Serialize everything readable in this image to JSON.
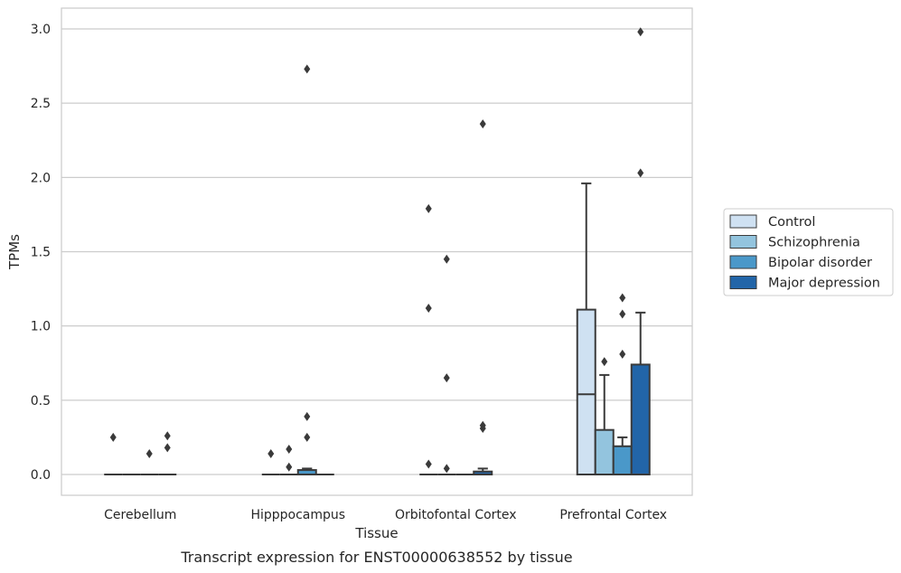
{
  "caption": "Transcript expression for ENST00000638552 by tissue",
  "chart_data": {
    "type": "box",
    "xlabel": "Tissue",
    "ylabel": "TPMs",
    "ylim": [
      -0.14,
      3.14
    ],
    "yticks": [
      0.0,
      0.5,
      1.0,
      1.5,
      2.0,
      2.5,
      3.0
    ],
    "ytick_labels": [
      "0.0",
      "0.5",
      "1.0",
      "1.5",
      "2.0",
      "2.5",
      "3.0"
    ],
    "grid": "horizontal",
    "legend_position": "right",
    "categories": [
      "Cerebellum",
      "Hipppocampus",
      "Orbitofontal Cortex",
      "Prefrontal Cortex"
    ],
    "series": [
      {
        "name": "Control",
        "color": "#cfe1f2",
        "boxes": [
          {
            "q1": 0.0,
            "median": 0.0,
            "q3": 0.0,
            "whisker_low": 0.0,
            "whisker_high": 0.0,
            "outliers": [
              0.25
            ]
          },
          {
            "q1": 0.0,
            "median": 0.0,
            "q3": 0.0,
            "whisker_low": 0.0,
            "whisker_high": 0.0,
            "outliers": [
              0.14
            ]
          },
          {
            "q1": 0.0,
            "median": 0.0,
            "q3": 0.0,
            "whisker_low": 0.0,
            "whisker_high": 0.0,
            "outliers": [
              1.79,
              1.12,
              0.07
            ]
          },
          {
            "q1": 0.0,
            "median": 0.54,
            "q3": 1.11,
            "whisker_low": 0.0,
            "whisker_high": 1.96,
            "outliers": []
          }
        ]
      },
      {
        "name": "Schizophrenia",
        "color": "#93c4de",
        "boxes": [
          {
            "q1": 0.0,
            "median": 0.0,
            "q3": 0.0,
            "whisker_low": 0.0,
            "whisker_high": 0.0,
            "outliers": []
          },
          {
            "q1": 0.0,
            "median": 0.0,
            "q3": 0.0,
            "whisker_low": 0.0,
            "whisker_high": 0.0,
            "outliers": [
              0.17,
              0.05
            ]
          },
          {
            "q1": 0.0,
            "median": 0.0,
            "q3": 0.0,
            "whisker_low": 0.0,
            "whisker_high": 0.0,
            "outliers": [
              1.45,
              0.65,
              0.04
            ]
          },
          {
            "q1": 0.0,
            "median": 0.0,
            "q3": 0.3,
            "whisker_low": 0.0,
            "whisker_high": 0.67,
            "outliers": [
              0.76
            ]
          }
        ]
      },
      {
        "name": "Bipolar disorder",
        "color": "#4a98c9",
        "boxes": [
          {
            "q1": 0.0,
            "median": 0.0,
            "q3": 0.0,
            "whisker_low": 0.0,
            "whisker_high": 0.0,
            "outliers": [
              0.14
            ]
          },
          {
            "q1": 0.0,
            "median": 0.0,
            "q3": 0.03,
            "whisker_low": 0.0,
            "whisker_high": 0.04,
            "outliers": [
              2.73,
              0.39,
              0.25
            ]
          },
          {
            "q1": 0.0,
            "median": 0.0,
            "q3": 0.0,
            "whisker_low": 0.0,
            "whisker_high": 0.0,
            "outliers": []
          },
          {
            "q1": 0.0,
            "median": 0.0,
            "q3": 0.19,
            "whisker_low": 0.0,
            "whisker_high": 0.25,
            "outliers": [
              1.19,
              1.08,
              0.81
            ]
          }
        ]
      },
      {
        "name": "Major depression",
        "color": "#2265a8",
        "boxes": [
          {
            "q1": 0.0,
            "median": 0.0,
            "q3": 0.0,
            "whisker_low": 0.0,
            "whisker_high": 0.0,
            "outliers": [
              0.26,
              0.18
            ]
          },
          {
            "q1": 0.0,
            "median": 0.0,
            "q3": 0.0,
            "whisker_low": 0.0,
            "whisker_high": 0.0,
            "outliers": []
          },
          {
            "q1": 0.0,
            "median": 0.0,
            "q3": 0.02,
            "whisker_low": 0.0,
            "whisker_high": 0.04,
            "outliers": [
              2.36,
              0.33,
              0.31
            ]
          },
          {
            "q1": 0.0,
            "median": 0.0,
            "q3": 0.74,
            "whisker_low": 0.0,
            "whisker_high": 1.09,
            "outliers": [
              2.98,
              2.03
            ]
          }
        ]
      }
    ]
  }
}
